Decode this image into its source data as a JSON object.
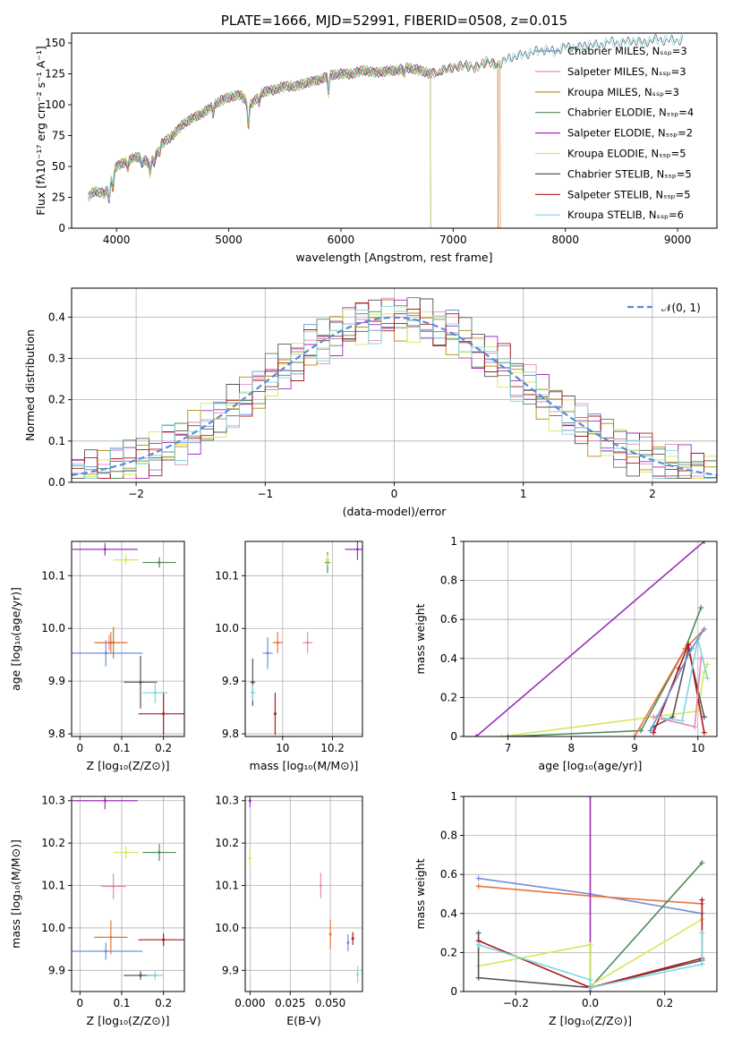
{
  "colors": {
    "chabrier_miles": "#6f8fd8",
    "salpeter_miles": "#e48ab8",
    "kroupa_miles": "#b8860b",
    "chabrier_elodie": "#4f8a5a",
    "salpeter_elodie": "#9b30b8",
    "kroupa_elodie": "#d4e85a",
    "chabrier_stelib": "#555555",
    "salpeter_stelib": "#b01818",
    "kroupa_stelib": "#7fd7e0",
    "orange": "#e8743b",
    "gauss": "#5b8ad8"
  },
  "legend_entries": [
    {
      "label": "Chabrier MILES, Nₛₛₚ=3",
      "color": "#6f8fd8"
    },
    {
      "label": "Salpeter MILES, Nₛₛₚ=3",
      "color": "#e48ab8"
    },
    {
      "label": "Kroupa MILES, Nₛₛₚ=3",
      "color": "#b8860b"
    },
    {
      "label": "Chabrier ELODIE, Nₛₛₚ=4",
      "color": "#4f8a5a"
    },
    {
      "label": "Salpeter ELODIE, Nₛₛₚ=2",
      "color": "#9b30b8"
    },
    {
      "label": "Kroupa ELODIE, Nₛₛₚ=5",
      "color": "#d4e85a"
    },
    {
      "label": "Chabrier STELIB, Nₛₛₚ=5",
      "color": "#555555"
    },
    {
      "label": "Salpeter STELIB, Nₛₛₚ=5",
      "color": "#b01818"
    },
    {
      "label": "Kroupa STELIB, Nₛₛₚ=6",
      "color": "#7fd7e0"
    }
  ],
  "chart_data": [
    {
      "id": "spectrum",
      "type": "line",
      "title": "PLATE=1666, MJD=52991, FIBERID=0508, z=0.015",
      "xlabel": "wavelength [Angstrom, rest frame]",
      "ylabel": "Flux [fλ10⁻¹⁷ erg cm⁻² s⁻¹ A⁻¹]",
      "xlim": [
        3600,
        9350
      ],
      "ylim": [
        0,
        158
      ],
      "xticks": [
        4000,
        5000,
        6000,
        7000,
        8000,
        9000
      ],
      "yticks": [
        0,
        25,
        50,
        75,
        100,
        125,
        150
      ],
      "continuum": [
        [
          3750,
          25
        ],
        [
          3800,
          30
        ],
        [
          3900,
          28
        ],
        [
          3950,
          40
        ],
        [
          4000,
          50
        ],
        [
          4100,
          55
        ],
        [
          4200,
          58
        ],
        [
          4300,
          52
        ],
        [
          4400,
          68
        ],
        [
          4500,
          75
        ],
        [
          4600,
          85
        ],
        [
          4700,
          90
        ],
        [
          4800,
          95
        ],
        [
          4900,
          102
        ],
        [
          5000,
          106
        ],
        [
          5100,
          108
        ],
        [
          5200,
          100
        ],
        [
          5300,
          110
        ],
        [
          5400,
          112
        ],
        [
          5500,
          115
        ],
        [
          5600,
          115
        ],
        [
          5700,
          118
        ],
        [
          5800,
          120
        ],
        [
          5900,
          124
        ],
        [
          6000,
          125
        ],
        [
          6100,
          125
        ],
        [
          6200,
          128
        ],
        [
          6300,
          126
        ],
        [
          6400,
          127
        ],
        [
          6500,
          128
        ],
        [
          6600,
          130
        ],
        [
          6700,
          128
        ],
        [
          6800,
          125
        ],
        [
          6900,
          128
        ],
        [
          7000,
          130
        ],
        [
          7100,
          132
        ],
        [
          7200,
          130
        ],
        [
          7300,
          135
        ],
        [
          7400,
          132
        ],
        [
          7500,
          138
        ],
        [
          7600,
          140
        ],
        [
          7700,
          142
        ],
        [
          7800,
          145
        ],
        [
          7900,
          143
        ],
        [
          8000,
          147
        ],
        [
          8100,
          146
        ],
        [
          8200,
          149
        ],
        [
          8300,
          148
        ],
        [
          8400,
          151
        ],
        [
          8500,
          150
        ],
        [
          8600,
          152
        ],
        [
          8700,
          150
        ],
        [
          8800,
          153
        ],
        [
          8900,
          152
        ],
        [
          9000,
          152
        ],
        [
          9050,
          153
        ]
      ],
      "dips": [
        [
          3934,
          -14
        ],
        [
          3968,
          -12
        ],
        [
          4102,
          -6
        ],
        [
          4227,
          -5
        ],
        [
          4300,
          -8
        ],
        [
          4340,
          -5
        ],
        [
          4384,
          -4
        ],
        [
          4861,
          -6
        ],
        [
          5175,
          -20
        ],
        [
          5270,
          -5
        ],
        [
          5890,
          -15
        ],
        [
          6563,
          -5
        ],
        [
          6867,
          -4
        ]
      ]
    },
    {
      "id": "residuals",
      "type": "line",
      "xlabel": "(data-model)/error",
      "ylabel": "Normed distribution",
      "xlim": [
        -2.5,
        2.5
      ],
      "ylim": [
        0,
        0.47
      ],
      "xticks": [
        -2,
        -1,
        0,
        1,
        2
      ],
      "yticks": [
        0.0,
        0.1,
        0.2,
        0.3,
        0.4
      ],
      "legend": "𝒩(0, 1)"
    },
    {
      "id": "age_vs_Z",
      "type": "scatter",
      "xlabel": "Z [log₁₀(Z/Z⊙)]",
      "ylabel": "age  [log₁₀(age/yr)]",
      "xlim": [
        -0.02,
        0.25
      ],
      "ylim": [
        9.795,
        10.165
      ],
      "xticks": [
        0.0,
        0.1,
        0.2
      ],
      "yticks": [
        9.8,
        9.9,
        10.0,
        10.1
      ],
      "points": [
        {
          "x": 0.062,
          "y": 9.953,
          "ex": 0.088,
          "ey": 0.025,
          "c": "chabrier_miles"
        },
        {
          "x": 0.07,
          "y": 9.973,
          "ex": 0.03,
          "ey": 0.015,
          "c": "salpeter_miles"
        },
        {
          "x": 0.08,
          "y": 9.973,
          "ex": 0.028,
          "ey": 0.03,
          "c": "kroupa_miles"
        },
        {
          "x": 0.074,
          "y": 9.973,
          "ex": 0.04,
          "ey": 0.02,
          "c": "orange"
        },
        {
          "x": 0.19,
          "y": 10.125,
          "ex": 0.04,
          "ey": 0.01,
          "c": "chabrier_elodie"
        },
        {
          "x": 0.06,
          "y": 10.15,
          "ex": 0.078,
          "ey": 0.012,
          "c": "salpeter_elodie"
        },
        {
          "x": 0.11,
          "y": 10.13,
          "ex": 0.03,
          "ey": 0.01,
          "c": "kroupa_elodie"
        },
        {
          "x": 0.145,
          "y": 9.898,
          "ex": 0.04,
          "ey": 0.05,
          "c": "chabrier_stelib"
        },
        {
          "x": 0.2,
          "y": 9.838,
          "ex": 0.06,
          "ey": 0.04,
          "c": "salpeter_stelib"
        },
        {
          "x": 0.18,
          "y": 9.878,
          "ex": 0.03,
          "ey": 0.02,
          "c": "kroupa_stelib"
        }
      ]
    },
    {
      "id": "age_vs_mass",
      "type": "scatter",
      "xlabel": "mass [log₁₀(M/M⊙)]",
      "ylabel": "",
      "xlim": [
        9.85,
        10.32
      ],
      "ylim": [
        9.795,
        10.165
      ],
      "xticks": [
        10.0,
        10.2
      ],
      "yticks": [
        9.8,
        9.9,
        10.0,
        10.1
      ],
      "points": [
        {
          "x": 9.94,
          "y": 9.953,
          "ex": 0.02,
          "ey": 0.03,
          "c": "chabrier_miles"
        },
        {
          "x": 10.1,
          "y": 9.973,
          "ex": 0.02,
          "ey": 0.02,
          "c": "salpeter_miles"
        },
        {
          "x": 9.98,
          "y": 9.973,
          "ex": 0.02,
          "ey": 0.02,
          "c": "orange"
        },
        {
          "x": 10.18,
          "y": 10.125,
          "ex": 0.01,
          "ey": 0.02,
          "c": "chabrier_elodie"
        },
        {
          "x": 10.3,
          "y": 10.15,
          "ex": 0.05,
          "ey": 0.02,
          "c": "salpeter_elodie"
        },
        {
          "x": 10.18,
          "y": 10.13,
          "ex": 0.01,
          "ey": 0.01,
          "c": "kroupa_elodie"
        },
        {
          "x": 9.88,
          "y": 9.898,
          "ex": 0.01,
          "ey": 0.045,
          "c": "chabrier_stelib"
        },
        {
          "x": 9.97,
          "y": 9.838,
          "ex": 0.005,
          "ey": 0.04,
          "c": "salpeter_stelib"
        },
        {
          "x": 9.88,
          "y": 9.878,
          "ex": 0.01,
          "ey": 0.015,
          "c": "kroupa_stelib"
        }
      ]
    },
    {
      "id": "weight_vs_age",
      "type": "line",
      "xlabel": "age  [log₁₀(age/yr)]",
      "ylabel": "mass weight",
      "xlim": [
        6.3,
        10.3
      ],
      "ylim": [
        0,
        1.0
      ],
      "xticks": [
        7,
        8,
        9,
        10
      ],
      "yticks": [
        0.0,
        0.2,
        0.4,
        0.6,
        0.8,
        1.0
      ],
      "series": [
        {
          "c": "salpeter_elodie",
          "pts": [
            [
              6.5,
              0.0
            ],
            [
              10.1,
              1.0
            ]
          ]
        },
        {
          "c": "kroupa_elodie",
          "pts": [
            [
              6.9,
              0.0
            ],
            [
              10.0,
              0.13
            ],
            [
              10.1,
              0.33
            ],
            [
              10.15,
              0.37
            ]
          ]
        },
        {
          "c": "chabrier_elodie",
          "pts": [
            [
              7.0,
              0.0
            ],
            [
              9.1,
              0.03
            ],
            [
              9.8,
              0.45
            ],
            [
              10.05,
              0.66
            ]
          ]
        },
        {
          "c": "orange",
          "pts": [
            [
              9.0,
              0.0
            ],
            [
              9.8,
              0.45
            ],
            [
              10.1,
              0.55
            ]
          ]
        },
        {
          "c": "chabrier_stelib",
          "pts": [
            [
              9.3,
              0.05
            ],
            [
              9.6,
              0.1
            ],
            [
              9.85,
              0.45
            ],
            [
              10.1,
              0.1
            ]
          ]
        },
        {
          "c": "salpeter_stelib",
          "pts": [
            [
              9.3,
              0.02
            ],
            [
              9.7,
              0.35
            ],
            [
              9.85,
              0.47
            ],
            [
              10.1,
              0.02
            ]
          ]
        },
        {
          "c": "kroupa_stelib",
          "pts": [
            [
              9.35,
              0.1
            ],
            [
              9.75,
              0.08
            ],
            [
              10.0,
              0.5
            ],
            [
              10.15,
              0.3
            ]
          ]
        },
        {
          "c": "chabrier_miles",
          "pts": [
            [
              9.25,
              0.03
            ],
            [
              9.9,
              0.45
            ],
            [
              10.1,
              0.55
            ]
          ]
        },
        {
          "c": "salpeter_miles",
          "pts": [
            [
              9.3,
              0.1
            ],
            [
              9.95,
              0.05
            ],
            [
              10.05,
              0.4
            ]
          ]
        }
      ]
    },
    {
      "id": "mass_vs_Z",
      "type": "scatter",
      "xlabel": "Z [log₁₀(Z/Z⊙)]",
      "ylabel": "mass [log₁₀(M/M⊙)]",
      "xlim": [
        -0.02,
        0.25
      ],
      "ylim": [
        9.85,
        10.31
      ],
      "xticks": [
        0.0,
        0.1,
        0.2
      ],
      "yticks": [
        9.9,
        10.0,
        10.1,
        10.2,
        10.3
      ],
      "points": [
        {
          "x": 0.062,
          "y": 9.945,
          "ex": 0.088,
          "ey": 0.02,
          "c": "chabrier_miles"
        },
        {
          "x": 0.08,
          "y": 10.098,
          "ex": 0.03,
          "ey": 0.03,
          "c": "salpeter_miles"
        },
        {
          "x": 0.074,
          "y": 9.978,
          "ex": 0.04,
          "ey": 0.04,
          "c": "orange"
        },
        {
          "x": 0.19,
          "y": 10.178,
          "ex": 0.04,
          "ey": 0.02,
          "c": "chabrier_elodie"
        },
        {
          "x": 0.06,
          "y": 10.3,
          "ex": 0.078,
          "ey": 0.02,
          "c": "salpeter_elodie"
        },
        {
          "x": 0.11,
          "y": 10.178,
          "ex": 0.03,
          "ey": 0.015,
          "c": "kroupa_elodie"
        },
        {
          "x": 0.145,
          "y": 9.888,
          "ex": 0.04,
          "ey": 0.01,
          "c": "chabrier_stelib"
        },
        {
          "x": 0.2,
          "y": 9.972,
          "ex": 0.06,
          "ey": 0.015,
          "c": "salpeter_stelib"
        },
        {
          "x": 0.18,
          "y": 9.888,
          "ex": 0.02,
          "ey": 0.01,
          "c": "kroupa_stelib"
        }
      ]
    },
    {
      "id": "mass_vs_ebv",
      "type": "scatter",
      "xlabel": "E(B-V)",
      "ylabel": "",
      "xlim": [
        -0.003,
        0.07
      ],
      "ylim": [
        9.85,
        10.31
      ],
      "xticks": [
        0.0,
        0.025,
        0.05
      ],
      "xticklabels": [
        "0.000",
        "0.025",
        "0.050"
      ],
      "yticks": [
        9.9,
        10.0,
        10.1,
        10.2,
        10.3
      ],
      "points": [
        {
          "x": 0.0,
          "y": 10.3,
          "ex": 0.0,
          "ey": 0.015,
          "c": "salpeter_elodie"
        },
        {
          "x": 0.0,
          "y": 10.165,
          "ex": 0.0,
          "ey": 0.02,
          "c": "kroupa_elodie"
        },
        {
          "x": 0.044,
          "y": 10.1,
          "ex": 0.0,
          "ey": 0.03,
          "c": "salpeter_miles"
        },
        {
          "x": 0.05,
          "y": 9.985,
          "ex": 0.0,
          "ey": 0.035,
          "c": "orange"
        },
        {
          "x": 0.061,
          "y": 9.965,
          "ex": 0.0,
          "ey": 0.02,
          "c": "chabrier_miles"
        },
        {
          "x": 0.064,
          "y": 9.975,
          "ex": 0.0,
          "ey": 0.015,
          "c": "salpeter_stelib"
        },
        {
          "x": 0.067,
          "y": 9.89,
          "ex": 0.0,
          "ey": 0.02,
          "c": "kroupa_stelib"
        }
      ]
    },
    {
      "id": "weight_vs_Z",
      "type": "line",
      "xlabel": "Z [log₁₀(Z/Z⊙)]",
      "ylabel": "mass weight",
      "xlim": [
        -0.34,
        0.34
      ],
      "ylim": [
        0,
        1.0
      ],
      "xticks": [
        -0.2,
        0.0,
        0.2
      ],
      "xticklabels": [
        "−0.2",
        "0.0",
        "0.2"
      ],
      "yticks": [
        0.0,
        0.2,
        0.4,
        0.6,
        0.8,
        1.0
      ],
      "series": [
        {
          "c": "chabrier_miles",
          "pts": [
            [
              -0.3,
              0.58
            ],
            [
              0.0,
              0.5
            ],
            [
              0.3,
              0.4
            ]
          ]
        },
        {
          "c": "orange",
          "pts": [
            [
              -0.3,
              0.54
            ],
            [
              0.0,
              0.49
            ],
            [
              0.3,
              0.45
            ]
          ]
        },
        {
          "c": "salpeter_elodie",
          "pts": [
            [
              0.0,
              1.0
            ],
            [
              0.0,
              0.0
            ]
          ]
        },
        {
          "c": "chabrier_elodie",
          "pts": [
            [
              0.0,
              0.02
            ],
            [
              0.3,
              0.66
            ]
          ]
        },
        {
          "c": "kroupa_elodie",
          "pts": [
            [
              -0.3,
              0.13
            ],
            [
              0.0,
              0.24
            ],
            [
              0.0,
              0.03
            ],
            [
              0.3,
              0.37
            ]
          ]
        },
        {
          "c": "chabrier_stelib",
          "pts": [
            [
              -0.3,
              0.3
            ],
            [
              -0.3,
              0.07
            ],
            [
              0.0,
              0.02
            ],
            [
              0.3,
              0.16
            ]
          ]
        },
        {
          "c": "salpeter_stelib",
          "pts": [
            [
              -0.3,
              0.26
            ],
            [
              0.0,
              0.02
            ],
            [
              0.3,
              0.17
            ],
            [
              0.3,
              0.47
            ]
          ]
        },
        {
          "c": "kroupa_stelib",
          "pts": [
            [
              -0.3,
              0.24
            ],
            [
              0.0,
              0.06
            ],
            [
              0.0,
              0.02
            ],
            [
              0.3,
              0.14
            ],
            [
              0.3,
              0.3
            ]
          ]
        }
      ]
    }
  ]
}
